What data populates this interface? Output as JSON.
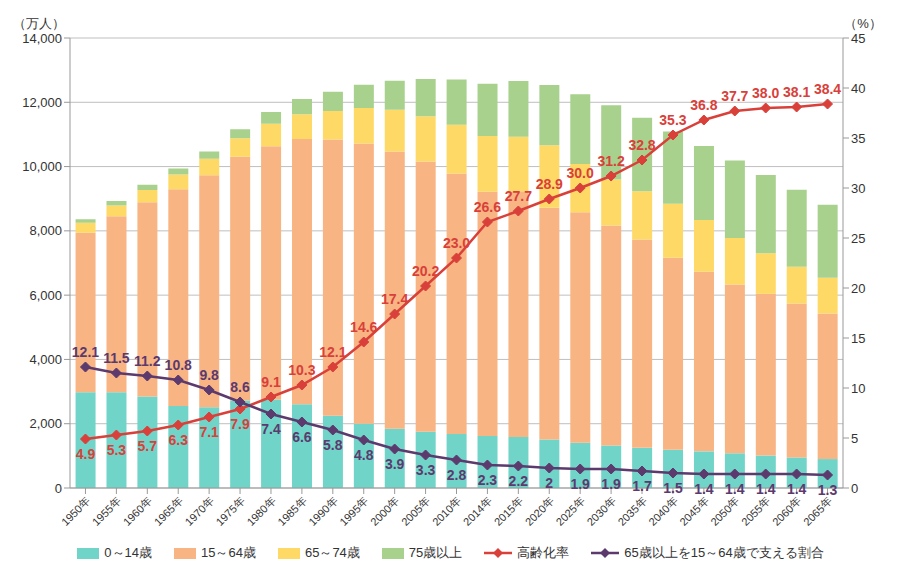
{
  "chart_data": {
    "type": "bar",
    "stacked": true,
    "grid": true,
    "legend": "bottom",
    "data_labels": true,
    "y_label": "（万人）",
    "y2_label": "（%）",
    "categories": [
      "1950年",
      "1955年",
      "1960年",
      "1965年",
      "1970年",
      "1975年",
      "1980年",
      "1985年",
      "1990年",
      "1995年",
      "2000年",
      "2005年",
      "2010年",
      "2014年",
      "2015年",
      "2020年",
      "2025年",
      "2030年",
      "2035年",
      "2040年",
      "2045年",
      "2050年",
      "2055年",
      "2060年",
      "2065年"
    ],
    "ylim": [
      0,
      14000
    ],
    "yticks": [
      0,
      {
        "value": 2000,
        "label": "2,000"
      },
      {
        "value": 4000,
        "label": "4,000"
      },
      {
        "value": 6000,
        "label": "6,000"
      },
      {
        "value": 8000,
        "label": "8,000"
      },
      {
        "value": 10000,
        "label": "10,000"
      },
      {
        "value": 12000,
        "label": "12,000"
      },
      {
        "value": 14000,
        "label": "14,000"
      }
    ],
    "y2lim": [
      0,
      45
    ],
    "y2ticks": [
      0,
      5,
      10,
      15,
      20,
      25,
      30,
      35,
      40,
      45
    ],
    "series": [
      {
        "name": "0～14歳",
        "type": "bar",
        "color": "#70d4c8",
        "values": [
          2979,
          2980,
          2843,
          2553,
          2515,
          2722,
          2751,
          2603,
          2249,
          2001,
          1847,
          1752,
          1680,
          1620,
          1590,
          1510,
          1410,
          1320,
          1250,
          1190,
          1140,
          1080,
          1010,
          950,
          900
        ]
      },
      {
        "name": "15～64歳",
        "type": "bar",
        "color": "#f8b483",
        "values": [
          4966,
          5473,
          6047,
          6744,
          7212,
          7581,
          7883,
          8251,
          8590,
          8716,
          8622,
          8409,
          8103,
          7600,
          7640,
          7210,
          7170,
          6850,
          6480,
          5970,
          5590,
          5250,
          5030,
          4790,
          4530
        ]
      },
      {
        "name": "65～74歳",
        "type": "bar",
        "color": "#ffd966",
        "values": [
          309,
          338,
          379,
          456,
          516,
          578,
          699,
          776,
          892,
          1109,
          1301,
          1407,
          1517,
          1730,
          1700,
          1940,
          1500,
          1430,
          1500,
          1680,
          1610,
          1450,
          1260,
          1140,
          1110
        ]
      },
      {
        "name": "75歳以上",
        "type": "bar",
        "color": "#a9d18e",
        "values": [
          106,
          138,
          163,
          189,
          224,
          284,
          366,
          471,
          597,
          717,
          900,
          1160,
          1407,
          1630,
          1730,
          1880,
          2170,
          2310,
          2290,
          2250,
          2300,
          2410,
          2440,
          2400,
          2270
        ]
      },
      {
        "name": "高齢化率",
        "type": "line",
        "axis": "y2",
        "marker": "diamond",
        "color": "#d9403a",
        "values": [
          4.9,
          5.3,
          5.7,
          6.3,
          7.1,
          7.9,
          9.1,
          10.3,
          12.1,
          14.6,
          17.4,
          20.2,
          23.0,
          26.6,
          27.7,
          28.9,
          30.0,
          31.2,
          32.8,
          35.3,
          36.8,
          37.7,
          38.0,
          38.1,
          38.4
        ],
        "value_labels": [
          "4.9",
          "5.3",
          "5.7",
          "6.3",
          "7.1",
          "7.9",
          "9.1",
          "10.3",
          "12.1",
          "14.6",
          "17.4",
          "20.2",
          "23.0",
          "26.6",
          "27.7",
          "28.9",
          "30.0",
          "31.2",
          "32.8",
          "35.3",
          "36.8",
          "37.7",
          "38.0",
          "38.1",
          "38.4"
        ]
      },
      {
        "name": "65歳以上を15～64歳で支える割合",
        "type": "line",
        "axis": "y2",
        "marker": "diamond",
        "color": "#5c3a6e",
        "values": [
          12.1,
          11.5,
          11.2,
          10.8,
          9.8,
          8.6,
          7.4,
          6.6,
          5.8,
          4.8,
          3.9,
          3.3,
          2.8,
          2.3,
          2.2,
          2,
          1.9,
          1.9,
          1.7,
          1.5,
          1.4,
          1.4,
          1.4,
          1.4,
          1.3
        ],
        "value_labels": [
          "12.1",
          "11.5",
          "11.2",
          "10.8",
          "9.8",
          "8.6",
          "7.4",
          "6.6",
          "5.8",
          "4.8",
          "3.9",
          "3.3",
          "2.8",
          "2.3",
          "2.2",
          "2",
          "1.9",
          "1.9",
          "1.7",
          "1.5",
          "1.4",
          "1.4",
          "1.4",
          "1.4",
          "1.3"
        ]
      }
    ]
  }
}
